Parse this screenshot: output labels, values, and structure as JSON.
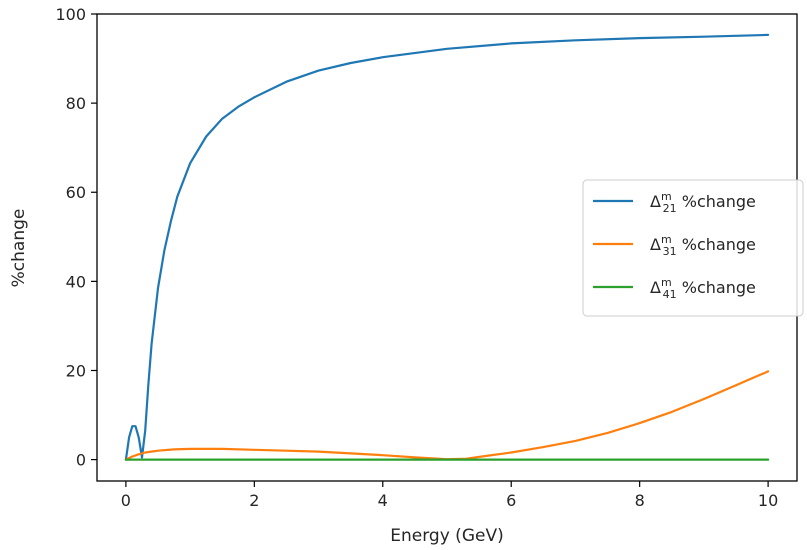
{
  "chart_data": {
    "type": "line",
    "xlabel": "Energy (GeV)",
    "ylabel": "%change",
    "xlim": [
      -0.45,
      10.45
    ],
    "ylim": [
      -4.8,
      100
    ],
    "xticks": [
      0,
      2,
      4,
      6,
      8,
      10
    ],
    "yticks": [
      0,
      20,
      40,
      60,
      80,
      100
    ],
    "grid": false,
    "legend_position": "center-right",
    "series": [
      {
        "name": "Δ21m %change",
        "legend_main": "Δ",
        "legend_sup": "m",
        "legend_sub": "21",
        "legend_suffix": " %change",
        "color": "#1f77b4",
        "x": [
          0.0,
          0.05,
          0.1,
          0.15,
          0.2,
          0.25,
          0.3,
          0.35,
          0.4,
          0.5,
          0.6,
          0.7,
          0.8,
          1.0,
          1.25,
          1.5,
          1.75,
          2.0,
          2.5,
          3.0,
          3.5,
          4.0,
          5.0,
          6.0,
          7.0,
          8.0,
          9.0,
          10.0
        ],
        "values": [
          0.0,
          5.0,
          7.5,
          7.5,
          5.0,
          0.5,
          6.5,
          17.0,
          26.0,
          38.5,
          47.0,
          53.5,
          59.0,
          66.5,
          72.5,
          76.5,
          79.2,
          81.3,
          84.8,
          87.3,
          89.0,
          90.3,
          92.2,
          93.4,
          94.1,
          94.6,
          94.9,
          95.3
        ]
      },
      {
        "name": "Δ31m %change",
        "legend_main": "Δ",
        "legend_sup": "m",
        "legend_sub": "31",
        "legend_suffix": " %change",
        "color": "#ff7f0e",
        "x": [
          0.0,
          0.1,
          0.2,
          0.3,
          0.5,
          0.75,
          1.0,
          1.25,
          1.5,
          2.0,
          2.5,
          3.0,
          3.5,
          4.0,
          4.5,
          5.0,
          5.3,
          5.6,
          6.0,
          6.5,
          7.0,
          7.5,
          8.0,
          8.5,
          9.0,
          9.5,
          10.0
        ],
        "values": [
          0.0,
          0.7,
          1.2,
          1.6,
          2.0,
          2.3,
          2.4,
          2.4,
          2.4,
          2.2,
          2.0,
          1.8,
          1.4,
          1.0,
          0.5,
          0.1,
          0.2,
          0.8,
          1.6,
          2.8,
          4.2,
          6.0,
          8.2,
          10.7,
          13.6,
          16.7,
          19.8
        ]
      },
      {
        "name": "Δ41m %change",
        "legend_main": "Δ",
        "legend_sup": "m",
        "legend_sub": "41",
        "legend_suffix": " %change",
        "color": "#2ca02c",
        "x": [
          0.0,
          10.0
        ],
        "values": [
          0.0,
          0.0
        ]
      }
    ]
  }
}
